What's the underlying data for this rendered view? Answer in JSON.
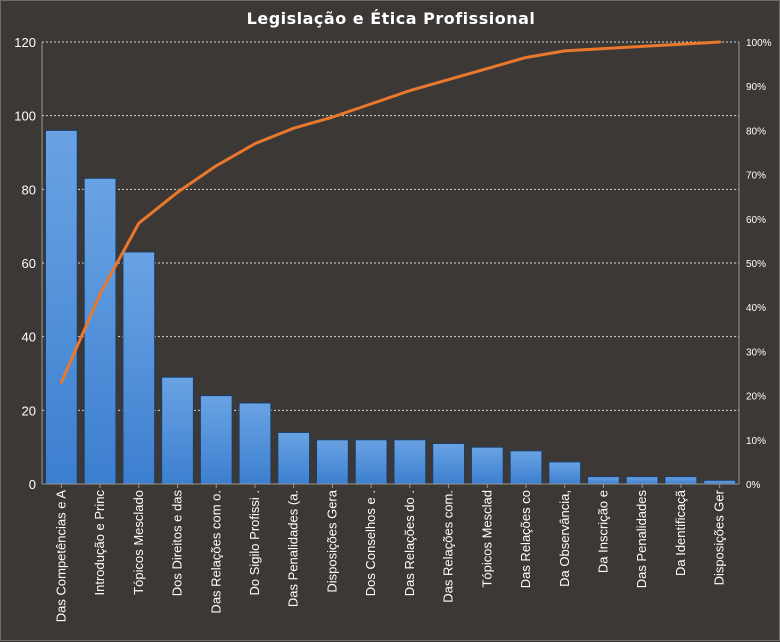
{
  "chart_data": {
    "type": "bar",
    "title": "Legislação  e  Ética  Profissional",
    "categories": [
      "Das Competências e A",
      "Introdução  e Princ",
      "Tópicos Mesclado",
      "Dos Direitos e das",
      "Das Relações com o.",
      "Do Sigilo Profissi .",
      "Das Penalidades (a.",
      "Disposições Gera",
      "Dos Conselhos e .",
      "Das Relações do  .",
      "Das Relações com.",
      "Tópicos Mesclad",
      "Das Relações co",
      "Da Observância,",
      "Da Inscrição e",
      "Das Penalidades",
      "Da Identificaçã",
      "Disposições Ger"
    ],
    "series": [
      {
        "type": "bar",
        "values": [
          96,
          83,
          63,
          29,
          24,
          22,
          14,
          12,
          12,
          12,
          11,
          10,
          9,
          6,
          2,
          2,
          2,
          1
        ]
      },
      {
        "type": "line",
        "axis": "secondary",
        "unit": "%",
        "values": [
          23,
          43,
          59,
          66,
          72,
          77,
          80.5,
          83,
          86,
          89,
          91.5,
          94,
          96.5,
          98,
          98.5,
          99,
          99.5,
          100
        ]
      }
    ],
    "y_ticks": [
      "0",
      "20",
      "40",
      "60",
      "80",
      "100",
      "120"
    ],
    "ylim": [
      0,
      120
    ],
    "y2_ticks": [
      "0%",
      "10%",
      "20%",
      "30%",
      "40%",
      "50%",
      "60%",
      "70%",
      "80%",
      "90%",
      "100%"
    ],
    "y2lim": [
      0,
      100
    ],
    "grid": true,
    "colors": {
      "bar_top": "#6aa3e4",
      "bar_bottom": "#3c7fcf",
      "line": "#e9782d",
      "background": "#3b3836"
    }
  }
}
